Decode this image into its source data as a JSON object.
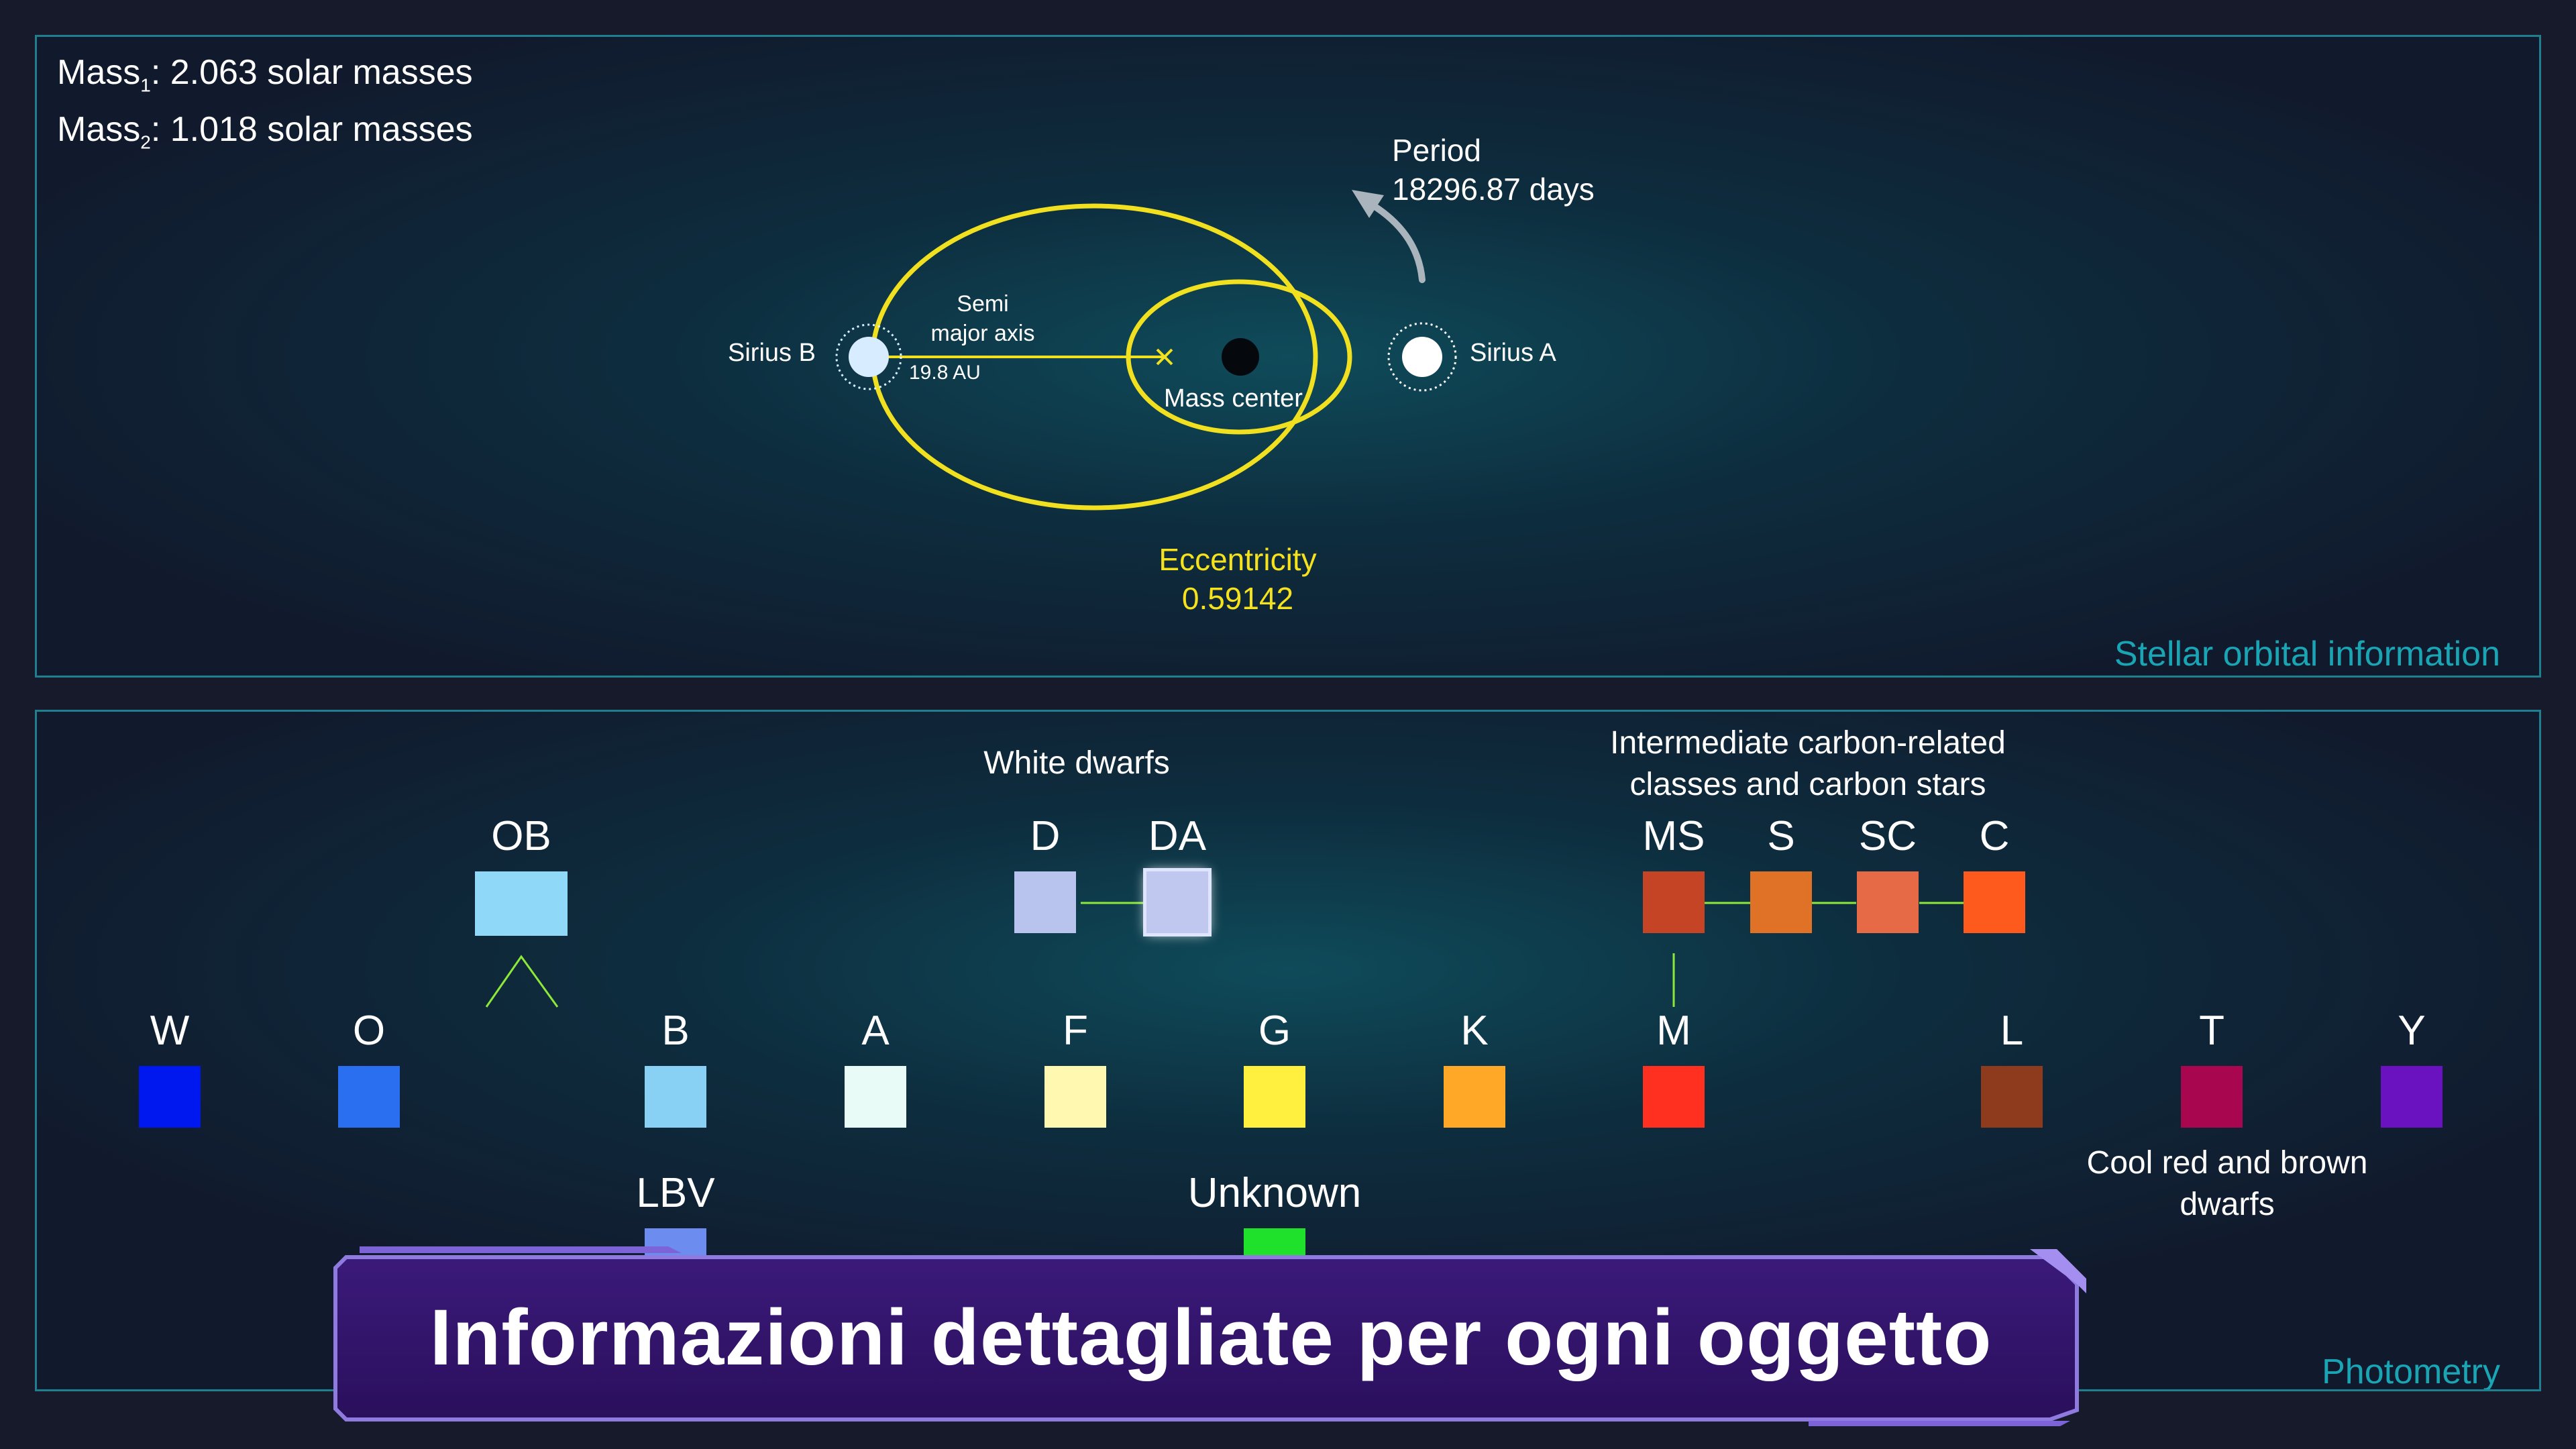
{
  "orbit": {
    "mass1_prefix": "Mass",
    "mass1_sub": "1",
    "mass1_value": ": 2.063 solar masses",
    "mass2_prefix": "Mass",
    "mass2_sub": "2",
    "mass2_value": ": 1.018 solar masses",
    "period_label": "Period",
    "period_value": "18296.87 days",
    "star_b": "Sirius B",
    "star_a": "Sirius A",
    "semi_major_line1": "Semi",
    "semi_major_line2": "major axis",
    "semi_major_value": "19.8 AU",
    "mass_center": "Mass center",
    "eccentricity_label": "Eccentricity",
    "eccentricity_value": "0.59142",
    "panel_label": "Stellar orbital information"
  },
  "classes": {
    "white_dwarfs_title": "White dwarfs",
    "carbon_title_line1": "Intermediate carbon-related",
    "carbon_title_line2": "classes and carbon stars",
    "cool_title_line1": "Cool red and brown",
    "cool_title_line2": "dwarfs",
    "ob": {
      "label": "OB",
      "color": "#8fd8f8"
    },
    "d": {
      "label": "D",
      "color": "#b8c4ee"
    },
    "da": {
      "label": "DA",
      "color": "#c0c8f0"
    },
    "ms": {
      "label": "MS",
      "color": "#c64426"
    },
    "s": {
      "label": "S",
      "color": "#e07228"
    },
    "sc": {
      "label": "SC",
      "color": "#e66a46"
    },
    "c": {
      "label": "C",
      "color": "#ff5a1e"
    },
    "main": [
      {
        "label": "W",
        "color": "#0018f0"
      },
      {
        "label": "O",
        "color": "#2a6ff0"
      },
      {
        "label": "B",
        "color": "#88d0f4"
      },
      {
        "label": "A",
        "color": "#e8fbf6"
      },
      {
        "label": "F",
        "color": "#fff8b0"
      },
      {
        "label": "G",
        "color": "#fff040"
      },
      {
        "label": "K",
        "color": "#ffa828"
      },
      {
        "label": "M",
        "color": "#ff3020"
      },
      {
        "label": "L",
        "color": "#8e3a1c"
      },
      {
        "label": "T",
        "color": "#a8064e"
      },
      {
        "label": "Y",
        "color": "#6a12c0"
      }
    ],
    "lbv": {
      "label": "LBV",
      "color": "#6c8cf0"
    },
    "unknown": {
      "label": "Unknown",
      "color": "#1fe02a"
    },
    "panel_label": "Photometry"
  },
  "banner": {
    "title": "Informazioni dettagliate per ogni oggetto"
  }
}
